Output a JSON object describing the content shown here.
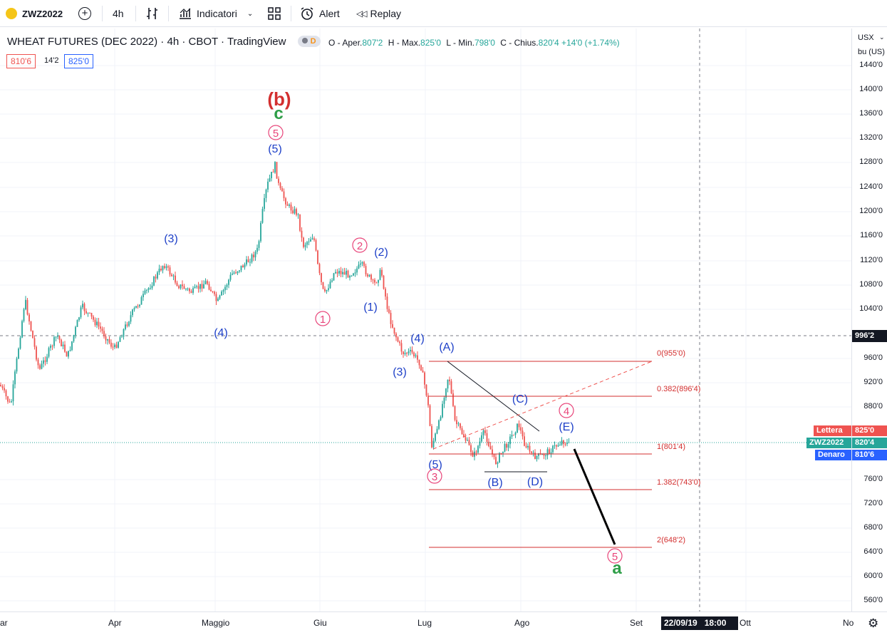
{
  "toolbar": {
    "symbol": "ZWZ2022",
    "interval": "4h",
    "indicators_label": "Indicatori",
    "alert_label": "Alert",
    "replay_label": "Replay"
  },
  "legend": {
    "title": "WHEAT FUTURES (DEC 2022) · 4h · CBOT · TradingView",
    "badge": "D",
    "open_label": "O - Aper.",
    "open": "807'2",
    "high_label": "H - Max.",
    "high": "825'0",
    "low_label": "L - Min.",
    "low": "798'0",
    "close_label": "C - Chius.",
    "close": "820'4",
    "change": "+14'0 (+1.74%)",
    "bid_box": "810'6",
    "spread_box": "14'2",
    "ask_box": "825'0"
  },
  "price_scale": {
    "currency": "USX",
    "unit": "bu (US)",
    "labels": [
      "1440'0",
      "1400'0",
      "1360'0",
      "1320'0",
      "1280'0",
      "1240'0",
      "1200'0",
      "1160'0",
      "1120'0",
      "1080'0",
      "1040'0",
      "960'0",
      "920'0",
      "880'0",
      "760'0",
      "720'0",
      "680'0",
      "640'0",
      "600'0",
      "560'0"
    ],
    "crosshair_price": "996'2",
    "ask_tag_label": "Lettera",
    "ask_tag_value": "825'0",
    "last_tag_label": "ZWZ2022",
    "last_tag_value": "820'4",
    "bid_tag_label": "Denaro",
    "bid_tag_value": "810'6"
  },
  "time_axis": {
    "labels": [
      "ar",
      "Apr",
      "Maggio",
      "Giu",
      "Lug",
      "Ago",
      "Set",
      "Ott",
      "No"
    ],
    "crosshair_time": "22/09/19   18:00"
  },
  "fib_levels": [
    "0(955'0)",
    "0.382(896'4)",
    "1(801'4)",
    "1.382(743'0)",
    "2(648'2)"
  ],
  "wave_labels": {
    "b_big": "(b)",
    "c_green": "c",
    "a_green": "a",
    "circle_5_top": "5",
    "circle_2": "2",
    "circle_1": "1",
    "circle_3": "3",
    "circle_4": "4",
    "circle_5_bottom": "5",
    "paren_5_top": "(5)",
    "paren_3": "(3)",
    "paren_4_left": "(4)",
    "paren_2": "(2)",
    "paren_1": "(1)",
    "paren_4": "(4)",
    "paren_3_low": "(3)",
    "paren_5_low": "(5)",
    "A": "(A)",
    "B": "(B)",
    "C": "(C)",
    "D": "(D)",
    "E": "(E)"
  },
  "colors": {
    "up": "#26a69a",
    "down": "#ef5350",
    "wave_blue": "#1e40c8",
    "wave_pink": "#e8457a",
    "wave_green": "#2e9e48",
    "fib_red": "#d32f2f",
    "bid_blue": "#2962ff"
  }
}
